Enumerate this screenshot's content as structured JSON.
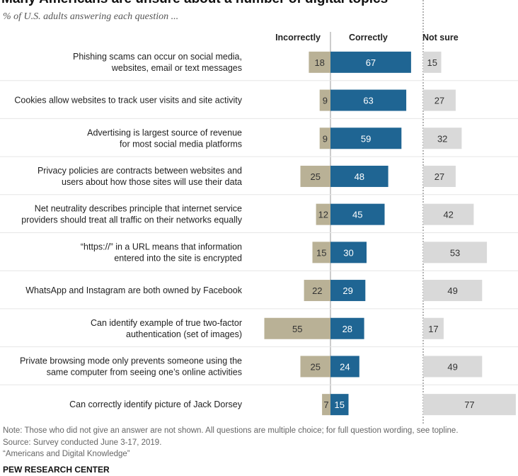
{
  "chart_data": {
    "type": "bar",
    "stacked": "diverging",
    "title": "Many Americans are unsure about a number of digital topics",
    "subtitle": "% of U.S. adults answering each question ...",
    "categories": [
      [
        "Phishing scams can occur on social media,",
        "websites, email or text messages"
      ],
      [
        "Cookies allow websites to track user visits and site activity"
      ],
      [
        "Advertising is largest source of revenue",
        "for most social media platforms"
      ],
      [
        "Privacy policies are contracts between websites and",
        "users about how those sites will use their data"
      ],
      [
        "Net neutrality describes principle that internet service",
        "providers should treat all traffic on their networks equally"
      ],
      [
        "“https://” in a URL means that information",
        "entered into the site is encrypted"
      ],
      [
        "WhatsApp and Instagram are both owned by Facebook"
      ],
      [
        "Can identify example of true two-factor",
        "authentication (set of images)"
      ],
      [
        "Private browsing mode only prevents someone using the",
        "same computer from seeing one’s online activities"
      ],
      [
        "Can correctly identify picture of Jack Dorsey"
      ]
    ],
    "series": [
      {
        "name": "Incorrectly",
        "color": "#b9b196",
        "values": [
          18,
          9,
          9,
          25,
          12,
          15,
          22,
          55,
          25,
          7
        ]
      },
      {
        "name": "Correctly",
        "color": "#1f6593",
        "values": [
          67,
          63,
          59,
          48,
          45,
          30,
          29,
          28,
          24,
          15
        ]
      },
      {
        "name": "Not sure",
        "color": "#d9d9d9",
        "values": [
          15,
          27,
          32,
          27,
          42,
          53,
          49,
          17,
          49,
          77
        ]
      }
    ],
    "grid": false,
    "legend": "top"
  },
  "footer": {
    "note": "Note: Those who did not give an answer are not shown. All questions are multiple choice; for full question wording, see topline.",
    "source": "Source: Survey conducted June 3-17, 2019.",
    "report": "“Americans and Digital Knowledge”",
    "brand": "PEW RESEARCH CENTER"
  }
}
